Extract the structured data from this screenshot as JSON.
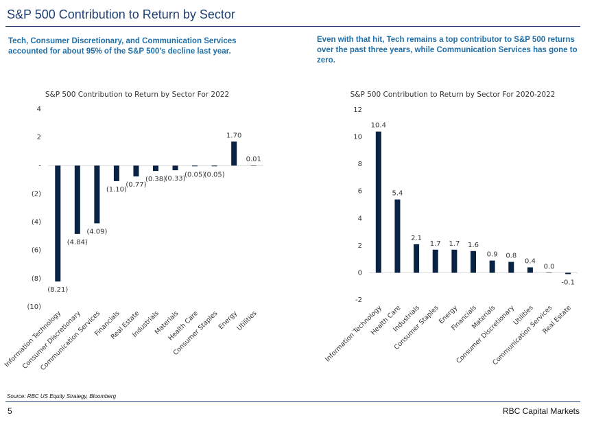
{
  "header": {
    "title": "S&P 500 Contribution to Return by Sector",
    "left_note": "Tech, Consumer Discretionary, and Communication Services accounted for about 95% of the S&P 500’s decline last year.",
    "right_note": "Even with that hit, Tech remains a top contributor to S&P 500 returns over the past three years, while Communication Services has gone to zero."
  },
  "footer": {
    "source": "Source: RBC US Equity Strategy, Bloomberg",
    "page": "5",
    "brand": "RBC Capital Markets"
  },
  "chart_data": [
    {
      "type": "bar",
      "title": "S&P 500 Contribution to Return by Sector For 2022",
      "categories": [
        "Information Technology",
        "Consumer Discretionary",
        "Communication Services",
        "Financials",
        "Real Estate",
        "Industrials",
        "Materials",
        "Health Care",
        "Consumer Staples",
        "Energy",
        "Utilities"
      ],
      "values": [
        -8.21,
        -4.84,
        -4.09,
        -1.1,
        -0.77,
        -0.38,
        -0.33,
        -0.05,
        -0.05,
        1.7,
        0.01
      ],
      "value_labels": [
        "(8.21)",
        "(4.84)",
        "(4.09)",
        "(1.10)",
        "(0.77)",
        "(0.38)",
        "(0.33)",
        "(0.05)",
        "(0.05)",
        "1.70",
        "0.01"
      ],
      "color": "#0b2343",
      "ylim": [
        -10,
        4
      ],
      "yticks": [
        {
          "value": -10,
          "label": "(10)"
        },
        {
          "value": -8,
          "label": "(8)"
        },
        {
          "value": -6,
          "label": "(6)"
        },
        {
          "value": -4,
          "label": "(4)"
        },
        {
          "value": -2,
          "label": "(2)"
        },
        {
          "value": 0,
          "label": "-"
        },
        2,
        4
      ],
      "grid": false
    },
    {
      "type": "bar",
      "title": "S&P 500 Contribution to Return by Sector For 2020-2022",
      "categories": [
        "Information Technology",
        "Health Care",
        "Industrials",
        "Consumer Staples",
        "Energy",
        "Financials",
        "Materials",
        "Consumer Discretionary",
        "Utilities",
        "Communication Services",
        "Real Estate"
      ],
      "values": [
        10.4,
        5.4,
        2.1,
        1.7,
        1.7,
        1.6,
        0.9,
        0.8,
        0.4,
        0.0,
        -0.1
      ],
      "value_labels": [
        "10.4",
        "5.4",
        "2.1",
        "1.7",
        "1.7",
        "1.6",
        "0.9",
        "0.8",
        "0.4",
        "0.0",
        "-0.1"
      ],
      "color": "#0b2343",
      "ylim": [
        -2,
        12
      ],
      "yticks": [
        -2,
        0,
        2,
        4,
        6,
        8,
        10,
        12
      ],
      "grid": false
    }
  ]
}
